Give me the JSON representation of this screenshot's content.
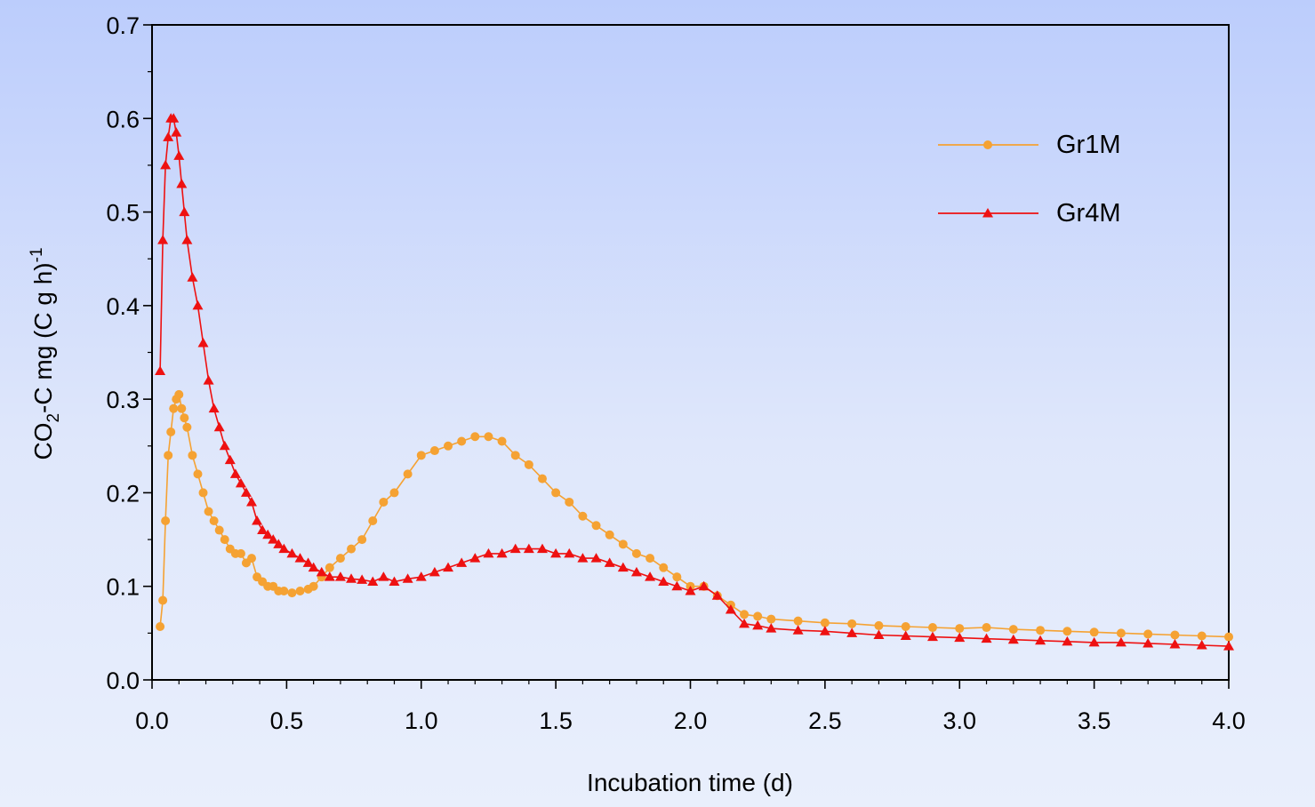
{
  "chart_data": {
    "type": "scatter",
    "title": "",
    "xlabel": "Incubation time (d)",
    "ylabel": {
      "main": "CO",
      "sub": "2",
      "rest": "-C mg (C g h)",
      "sup": "-1"
    },
    "xlim": [
      0,
      4
    ],
    "ylim": [
      0,
      0.7
    ],
    "xticks": [
      0.0,
      0.5,
      1.0,
      1.5,
      2.0,
      2.5,
      3.0,
      3.5,
      4.0
    ],
    "xtick_labels": [
      "0.0",
      "0.5",
      "1.0",
      "1.5",
      "2.0",
      "2.5",
      "3.0",
      "3.5",
      "4.0"
    ],
    "yticks": [
      0.0,
      0.1,
      0.2,
      0.3,
      0.4,
      0.5,
      0.6,
      0.7
    ],
    "ytick_labels": [
      "0.0",
      "0.1",
      "0.2",
      "0.3",
      "0.4",
      "0.5",
      "0.6",
      "0.7"
    ],
    "grid": false,
    "legend_position": "top-right",
    "series": [
      {
        "name": "Gr1M",
        "color": "#f5a233",
        "marker": "circle",
        "x": [
          0.03,
          0.04,
          0.05,
          0.06,
          0.07,
          0.08,
          0.09,
          0.1,
          0.11,
          0.12,
          0.13,
          0.15,
          0.17,
          0.19,
          0.21,
          0.23,
          0.25,
          0.27,
          0.29,
          0.31,
          0.33,
          0.35,
          0.37,
          0.39,
          0.41,
          0.43,
          0.45,
          0.47,
          0.49,
          0.52,
          0.55,
          0.58,
          0.6,
          0.63,
          0.66,
          0.7,
          0.74,
          0.78,
          0.82,
          0.86,
          0.9,
          0.95,
          1.0,
          1.05,
          1.1,
          1.15,
          1.2,
          1.25,
          1.3,
          1.35,
          1.4,
          1.45,
          1.5,
          1.55,
          1.6,
          1.65,
          1.7,
          1.75,
          1.8,
          1.85,
          1.9,
          1.95,
          2.0,
          2.05,
          2.1,
          2.15,
          2.2,
          2.25,
          2.3,
          2.4,
          2.5,
          2.6,
          2.7,
          2.8,
          2.9,
          3.0,
          3.1,
          3.2,
          3.3,
          3.4,
          3.5,
          3.6,
          3.7,
          3.8,
          3.9,
          4.0
        ],
        "y": [
          0.057,
          0.085,
          0.17,
          0.24,
          0.265,
          0.29,
          0.3,
          0.305,
          0.29,
          0.28,
          0.27,
          0.24,
          0.22,
          0.2,
          0.18,
          0.17,
          0.16,
          0.15,
          0.14,
          0.135,
          0.135,
          0.125,
          0.13,
          0.11,
          0.105,
          0.1,
          0.1,
          0.095,
          0.095,
          0.093,
          0.095,
          0.097,
          0.1,
          0.11,
          0.12,
          0.13,
          0.14,
          0.15,
          0.17,
          0.19,
          0.2,
          0.22,
          0.24,
          0.245,
          0.25,
          0.255,
          0.26,
          0.26,
          0.255,
          0.24,
          0.23,
          0.215,
          0.2,
          0.19,
          0.175,
          0.165,
          0.155,
          0.145,
          0.135,
          0.13,
          0.12,
          0.11,
          0.1,
          0.1,
          0.09,
          0.08,
          0.07,
          0.068,
          0.065,
          0.063,
          0.061,
          0.06,
          0.058,
          0.057,
          0.056,
          0.055,
          0.056,
          0.054,
          0.053,
          0.052,
          0.051,
          0.05,
          0.049,
          0.048,
          0.047,
          0.046
        ]
      },
      {
        "name": "Gr4M",
        "color": "#ee1111",
        "marker": "triangle",
        "x": [
          0.03,
          0.04,
          0.05,
          0.06,
          0.07,
          0.08,
          0.09,
          0.1,
          0.11,
          0.12,
          0.13,
          0.15,
          0.17,
          0.19,
          0.21,
          0.23,
          0.25,
          0.27,
          0.29,
          0.31,
          0.33,
          0.35,
          0.37,
          0.39,
          0.41,
          0.43,
          0.45,
          0.47,
          0.49,
          0.52,
          0.55,
          0.58,
          0.6,
          0.63,
          0.66,
          0.7,
          0.74,
          0.78,
          0.82,
          0.86,
          0.9,
          0.95,
          1.0,
          1.05,
          1.1,
          1.15,
          1.2,
          1.25,
          1.3,
          1.35,
          1.4,
          1.45,
          1.5,
          1.55,
          1.6,
          1.65,
          1.7,
          1.75,
          1.8,
          1.85,
          1.9,
          1.95,
          2.0,
          2.05,
          2.1,
          2.15,
          2.2,
          2.25,
          2.3,
          2.4,
          2.5,
          2.6,
          2.7,
          2.8,
          2.9,
          3.0,
          3.1,
          3.2,
          3.3,
          3.4,
          3.5,
          3.6,
          3.7,
          3.8,
          3.9,
          4.0
        ],
        "y": [
          0.33,
          0.47,
          0.55,
          0.58,
          0.6,
          0.6,
          0.585,
          0.56,
          0.53,
          0.5,
          0.47,
          0.43,
          0.4,
          0.36,
          0.32,
          0.29,
          0.27,
          0.25,
          0.235,
          0.22,
          0.21,
          0.2,
          0.19,
          0.17,
          0.16,
          0.155,
          0.15,
          0.145,
          0.14,
          0.135,
          0.13,
          0.125,
          0.12,
          0.115,
          0.11,
          0.11,
          0.108,
          0.107,
          0.105,
          0.11,
          0.105,
          0.108,
          0.11,
          0.115,
          0.12,
          0.125,
          0.13,
          0.135,
          0.135,
          0.14,
          0.14,
          0.14,
          0.135,
          0.135,
          0.13,
          0.13,
          0.125,
          0.12,
          0.115,
          0.11,
          0.105,
          0.1,
          0.095,
          0.1,
          0.09,
          0.075,
          0.06,
          0.058,
          0.055,
          0.053,
          0.052,
          0.05,
          0.048,
          0.047,
          0.046,
          0.045,
          0.044,
          0.043,
          0.042,
          0.041,
          0.04,
          0.04,
          0.039,
          0.038,
          0.037,
          0.036
        ]
      }
    ]
  }
}
